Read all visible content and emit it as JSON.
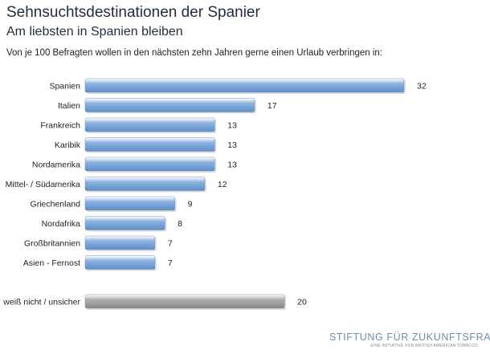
{
  "header": {
    "title": "Sehnsuchtsdestinationen der Spanier",
    "subtitle": "Am liebsten in Spanien bleiben",
    "question": "Von je 100 Befragten wollen in den nächsten zehn Jahren gerne einen Urlaub verbringen in:"
  },
  "logo": {
    "name": "STIFTUNG FÜR ZUKUNFTSFRAGEN",
    "tagline": "EINE INITIATIVE VON BRITISH AMERICAN TOBACCO"
  },
  "colors": {
    "bar": "#8db3e2",
    "bar_dark": "#5f8ec7",
    "bar_other": "#b0b0b0",
    "bar_other_dark": "#888888",
    "title": "#1f2d3d"
  },
  "chart_data": {
    "type": "bar",
    "orientation": "horizontal",
    "categories": [
      "Spanien",
      "Italien",
      "Frankreich",
      "Karibik",
      "Nordamerika",
      "Mittel- / Südamerika",
      "Griechenland",
      "Nordafrika",
      "Großbritannien",
      "Asien - Fernost"
    ],
    "values": [
      32,
      17,
      13,
      13,
      13,
      12,
      9,
      8,
      7,
      7
    ],
    "extra": {
      "category": "weiß nicht / unsicher",
      "value": 20
    },
    "xlim": [
      0,
      32
    ],
    "grid": false,
    "legend": "none"
  }
}
